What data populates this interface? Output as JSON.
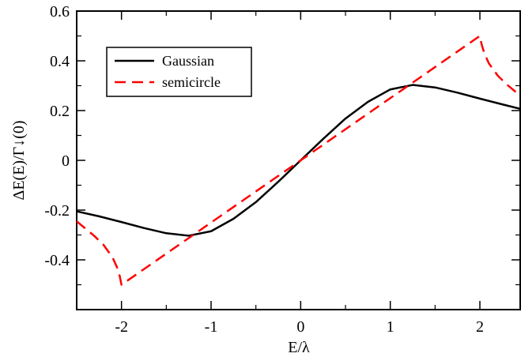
{
  "chart_data": {
    "type": "line",
    "xlabel": "E/λ",
    "ylabel": "ΔE(E)/Γ↓(0)",
    "xlim": [
      -2.5,
      2.45
    ],
    "ylim": [
      -0.6,
      0.6
    ],
    "xticks": [
      -2,
      -1,
      0,
      1,
      2
    ],
    "xtick_labels": [
      "-2",
      "-1",
      "0",
      "1",
      "2"
    ],
    "yticks": [
      -0.4,
      -0.2,
      0,
      0.2,
      0.4,
      0.6
    ],
    "ytick_labels": [
      "-0.4",
      "-0.2",
      "0",
      "0.2",
      "0.4",
      "0.6"
    ],
    "grid": false,
    "legend_position": "top-left",
    "series": [
      {
        "name": "Gaussian",
        "color": "#000000",
        "style": "solid",
        "x": [
          -2.5,
          -2.25,
          -2.0,
          -1.75,
          -1.5,
          -1.25,
          -1.0,
          -0.75,
          -0.5,
          -0.25,
          0.0,
          0.25,
          0.5,
          0.75,
          1.0,
          1.25,
          1.5,
          1.75,
          2.0,
          2.25,
          2.45
        ],
        "y": [
          -0.205,
          -0.225,
          -0.248,
          -0.272,
          -0.293,
          -0.303,
          -0.285,
          -0.235,
          -0.168,
          -0.086,
          0.0,
          0.086,
          0.168,
          0.235,
          0.285,
          0.303,
          0.293,
          0.272,
          0.248,
          0.225,
          0.207
        ]
      },
      {
        "name": "semicircle",
        "color": "#ff0000",
        "style": "dashed",
        "x": [
          -2.5,
          -2.4,
          -2.3,
          -2.2,
          -2.1,
          -2.05,
          -2.02,
          -2.0,
          2.0,
          2.02,
          2.05,
          2.1,
          2.2,
          2.3,
          2.4,
          2.45
        ],
        "y": [
          -0.245,
          -0.275,
          -0.305,
          -0.34,
          -0.39,
          -0.43,
          -0.465,
          -0.5,
          0.5,
          0.465,
          0.43,
          0.39,
          0.34,
          0.305,
          0.275,
          0.26
        ]
      }
    ]
  }
}
